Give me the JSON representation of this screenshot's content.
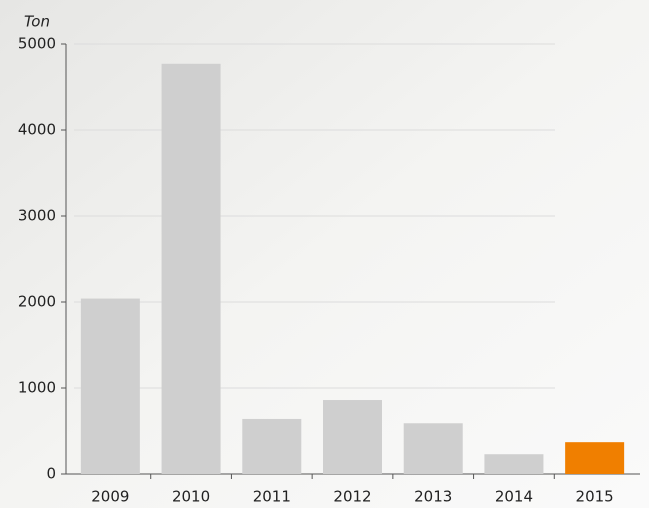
{
  "chart_data": {
    "type": "bar",
    "y_label": "Ton",
    "categories": [
      "2009",
      "2010",
      "2011",
      "2012",
      "2013",
      "2014",
      "2015"
    ],
    "values": [
      2040,
      4770,
      640,
      860,
      590,
      230,
      370
    ],
    "colors": [
      "#cfcfcf",
      "#cfcfcf",
      "#cfcfcf",
      "#cfcfcf",
      "#cfcfcf",
      "#cfcfcf",
      "#f07f00"
    ],
    "ylim": [
      0,
      5000
    ],
    "yticks": [
      0,
      1000,
      2000,
      3000,
      4000,
      5000
    ],
    "grid": true
  }
}
